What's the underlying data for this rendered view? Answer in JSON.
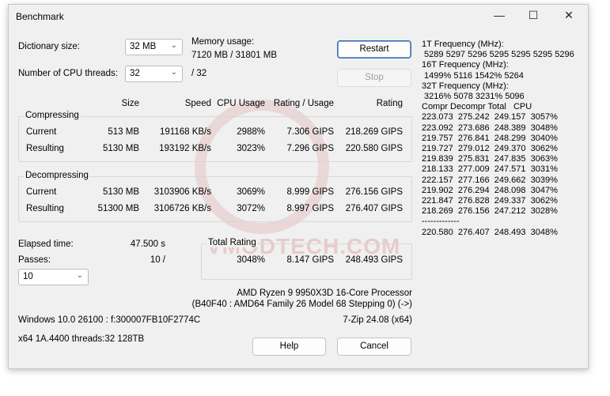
{
  "window": {
    "title": "Benchmark"
  },
  "controls": {
    "dict_label": "Dictionary size:",
    "dict_value": "32 MB",
    "threads_label": "Number of CPU threads:",
    "threads_value": "32",
    "threads_max": "/ 32",
    "mem_label": "Memory usage:",
    "mem_value": "7120 MB / 31801 MB",
    "restart": "Restart",
    "stop": "Stop"
  },
  "headers": {
    "size": "Size",
    "speed": "Speed",
    "cpu": "CPU Usage",
    "rpu": "Rating / Usage",
    "rating": "Rating"
  },
  "compressing": {
    "label": "Compressing",
    "rows": [
      {
        "name": "Current",
        "size": "513 MB",
        "speed": "191168 KB/s",
        "cpu": "2988%",
        "rpu": "7.306 GIPS",
        "rating": "218.269 GIPS"
      },
      {
        "name": "Resulting",
        "size": "5130 MB",
        "speed": "193192 KB/s",
        "cpu": "3023%",
        "rpu": "7.296 GIPS",
        "rating": "220.580 GIPS"
      }
    ]
  },
  "decompressing": {
    "label": "Decompressing",
    "rows": [
      {
        "name": "Current",
        "size": "5130 MB",
        "speed": "3103906 KB/s",
        "cpu": "3069%",
        "rpu": "8.999 GIPS",
        "rating": "276.156 GIPS"
      },
      {
        "name": "Resulting",
        "size": "51300 MB",
        "speed": "3106726 KB/s",
        "cpu": "3072%",
        "rpu": "8.997 GIPS",
        "rating": "276.407 GIPS"
      }
    ]
  },
  "elapsed": {
    "label": "Elapsed time:",
    "value": "47.500 s"
  },
  "passes": {
    "label": "Passes:",
    "value": "10 /",
    "select": "10"
  },
  "total": {
    "label": "Total Rating",
    "cpu": "3048%",
    "rpu": "8.147 GIPS",
    "rating": "248.493 GIPS"
  },
  "cpu_info": {
    "name": "AMD Ryzen 9 9950X3D 16-Core Processor",
    "detail": "(B40F40 : AMD64 Family 26 Model 68 Stepping 0) (->)"
  },
  "os": "Windows 10.0 26100 :  f:300007FB10F2774C",
  "version": "7-Zip 24.08 (x64)",
  "sys": "x64 1A.4400 threads:32 128TB",
  "buttons": {
    "help": "Help",
    "cancel": "Cancel"
  },
  "watermark": "VMODTECH.COM",
  "log": "1T Frequency (MHz):\n 5289 5297 5296 5295 5295 5295 5296\n16T Frequency (MHz):\n 1499% 5116 1542% 5264\n32T Frequency (MHz):\n 3216% 5078 3231% 5096\nCompr Decompr Total   CPU\n223.073  275.242  249.157  3057%\n223.092  273.686  248.389  3048%\n219.757  276.841  248.299  3040%\n219.727  279.012  249.370  3062%\n219.839  275.831  247.835  3063%\n218.133  277.009  247.571  3031%\n222.157  277.166  249.662  3039%\n219.902  276.294  248.098  3047%\n221.847  276.828  249.337  3062%\n218.269  276.156  247.212  3028%\n-------------\n220.580  276.407  248.493  3048%"
}
